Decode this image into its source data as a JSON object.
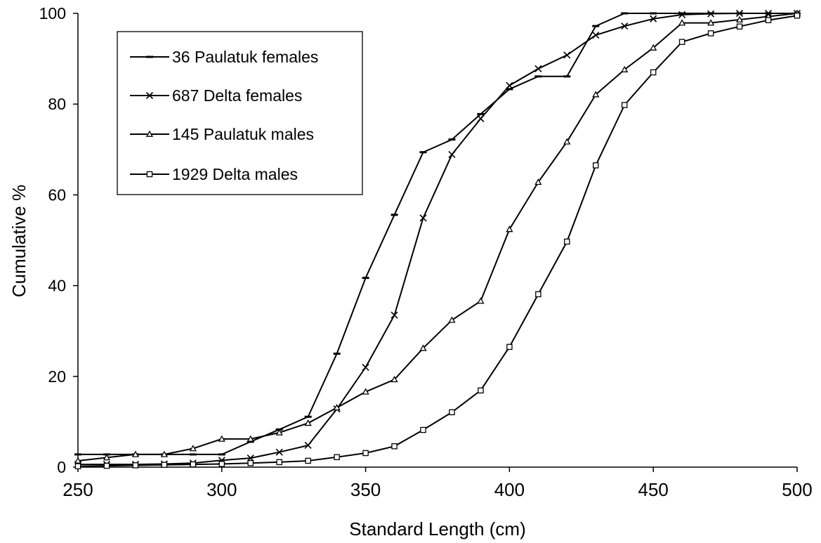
{
  "chart_data": {
    "type": "line",
    "xlabel": "Standard Length (cm)",
    "ylabel": "Cumulative %",
    "xlim": [
      250,
      500
    ],
    "ylim": [
      0,
      100
    ],
    "xticks": [
      250,
      300,
      350,
      400,
      450,
      500
    ],
    "yticks": [
      0,
      20,
      40,
      60,
      80,
      100
    ],
    "grid": false,
    "legend_position": "top-left",
    "x": [
      250,
      260,
      270,
      280,
      290,
      300,
      310,
      320,
      330,
      340,
      350,
      360,
      370,
      380,
      390,
      400,
      410,
      420,
      430,
      440,
      450,
      460,
      470,
      480,
      490,
      500
    ],
    "series": [
      {
        "name": "36 Paulatuk females",
        "marker": "dash",
        "values": [
          2.8,
          2.8,
          2.8,
          2.8,
          2.8,
          2.8,
          5.6,
          8.3,
          11.1,
          25.0,
          41.7,
          55.6,
          69.4,
          72.2,
          77.8,
          83.3,
          86.1,
          86.1,
          97.2,
          100,
          100,
          100,
          100,
          100,
          100,
          100
        ]
      },
      {
        "name": "687 Delta females",
        "marker": "x",
        "values": [
          0.6,
          0.6,
          0.6,
          0.7,
          0.9,
          1.5,
          2.0,
          3.3,
          4.8,
          12.8,
          22.0,
          33.5,
          54.9,
          68.9,
          76.8,
          84.1,
          87.8,
          90.8,
          95.2,
          97.2,
          98.8,
          99.7,
          99.9,
          100,
          100,
          100
        ]
      },
      {
        "name": "145 Paulatuk males",
        "marker": "triangle",
        "values": [
          1.4,
          2.1,
          2.8,
          2.8,
          4.1,
          6.2,
          6.2,
          7.6,
          9.7,
          13.1,
          16.6,
          19.3,
          26.2,
          32.4,
          36.6,
          52.4,
          62.8,
          71.7,
          82.1,
          87.6,
          92.4,
          97.9,
          97.9,
          98.6,
          99.3,
          100
        ]
      },
      {
        "name": "1929 Delta males",
        "marker": "square",
        "values": [
          0.2,
          0.3,
          0.4,
          0.5,
          0.6,
          0.7,
          0.9,
          1.1,
          1.4,
          2.2,
          3.1,
          4.6,
          8.2,
          12.1,
          16.9,
          26.5,
          38.1,
          49.7,
          66.5,
          79.8,
          87.0,
          93.7,
          95.6,
          97.1,
          98.5,
          99.5
        ]
      }
    ]
  }
}
